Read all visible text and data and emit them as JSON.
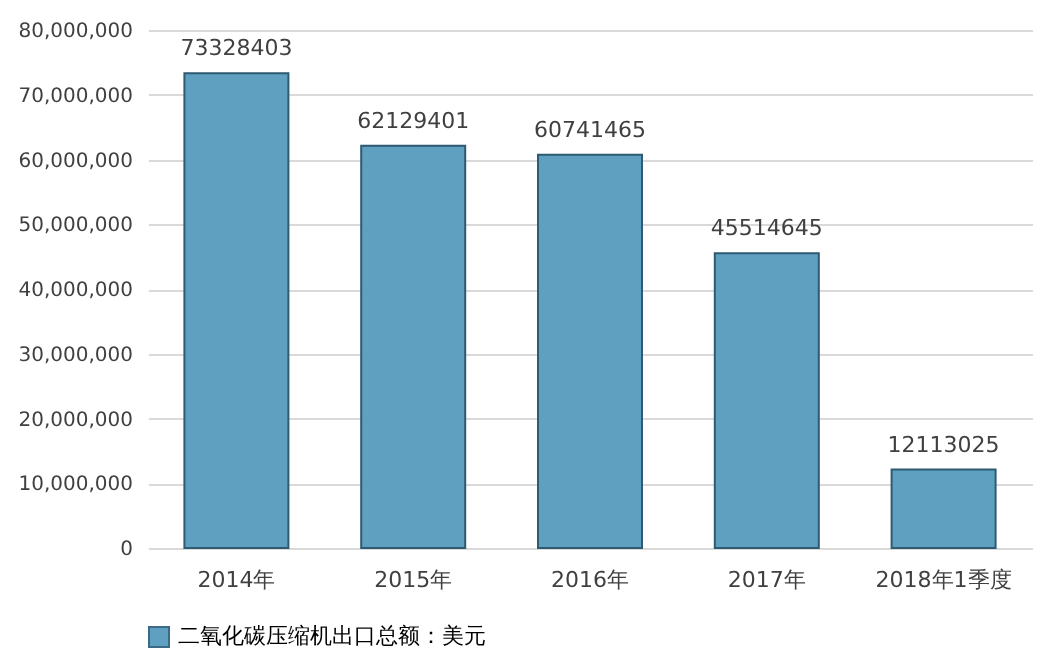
{
  "chart_data": {
    "type": "bar",
    "categories": [
      "2014年",
      "2015年",
      "2016年",
      "2017年",
      "2018年1季度"
    ],
    "series": [
      {
        "name": "二氧化碳压缩机出口总额：美元",
        "color": "#5f9fbf",
        "values": [
          73328403,
          62129401,
          60741465,
          45514645,
          12113025
        ]
      }
    ],
    "ylim": [
      0,
      80000000
    ],
    "yticks": [
      {
        "value": 0,
        "label": "0"
      },
      {
        "value": 10000000,
        "label": "10,000,000"
      },
      {
        "value": 20000000,
        "label": "20,000,000"
      },
      {
        "value": 30000000,
        "label": "30,000,000"
      },
      {
        "value": 40000000,
        "label": "40,000,000"
      },
      {
        "value": 50000000,
        "label": "50,000,000"
      },
      {
        "value": 60000000,
        "label": "60,000,000"
      },
      {
        "value": 70000000,
        "label": "70,000,000"
      },
      {
        "value": 80000000,
        "label": "80,000,000"
      }
    ],
    "grid": "y",
    "legend": "bottom",
    "data_labels": true
  }
}
